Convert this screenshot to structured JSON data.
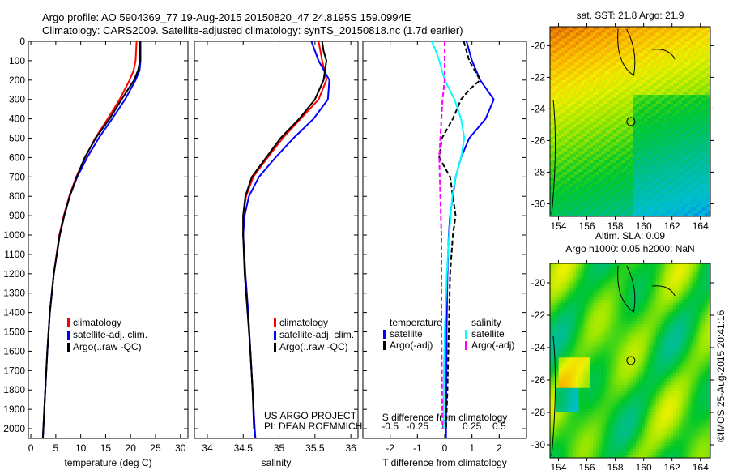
{
  "title_line1": "Argo profile: AO 5904369_77 19-Aug-2015 20150820_47 24.8195S 159.0994E",
  "title_line2": "Climatology: CARS2009. Satellite-adjusted climatology: synTS_20150818.nc (1.7d earlier)",
  "credit": "©IMOS 25-Aug-2015 20:41:16",
  "chart_data": [
    {
      "type": "line",
      "id": "temp",
      "xlabel": "temperature (deg C)",
      "xlim": [
        -0.5,
        31.5
      ],
      "xticks": [
        0,
        5,
        10,
        15,
        20,
        25,
        30
      ],
      "ylim": [
        0,
        2050
      ],
      "yticks": [
        0,
        100,
        200,
        300,
        400,
        500,
        600,
        700,
        800,
        900,
        1000,
        1100,
        1200,
        1300,
        1400,
        1500,
        1600,
        1700,
        1800,
        1900,
        2000
      ],
      "legend": [
        "climatology",
        "satellite-adj. clim.",
        "Argo(..raw -QC)"
      ],
      "series": [
        {
          "name": "climatology",
          "color": "#ff0000",
          "depth": [
            0,
            100,
            150,
            200,
            300,
            400,
            500,
            600,
            700,
            800,
            900,
            1000,
            1200,
            1400,
            1600,
            1800,
            2000,
            2050
          ],
          "values": [
            21.2,
            21.0,
            20.6,
            19.8,
            17.8,
            15.4,
            12.9,
            10.9,
            9.1,
            7.7,
            6.6,
            5.7,
            4.6,
            3.8,
            3.3,
            2.9,
            2.5,
            2.4
          ]
        },
        {
          "name": "satellite-adj. clim.",
          "color": "#0000ff",
          "depth": [
            0,
            100,
            150,
            200,
            300,
            400,
            500,
            600,
            700,
            800,
            900,
            1000,
            1200,
            1400,
            1600,
            1800,
            2000,
            2050
          ],
          "values": [
            22.0,
            22.0,
            21.8,
            21.0,
            18.9,
            16.3,
            13.6,
            11.3,
            9.3,
            7.8,
            6.7,
            5.8,
            4.6,
            3.8,
            3.3,
            2.9,
            2.5,
            2.4
          ]
        },
        {
          "name": "Argo(..raw -QC)",
          "color": "#000000",
          "depth": [
            0,
            100,
            150,
            200,
            300,
            400,
            500,
            600,
            700,
            800,
            900,
            1000,
            1200,
            1400,
            1600,
            1800,
            2000,
            2050
          ],
          "values": [
            21.9,
            21.9,
            21.5,
            20.7,
            18.2,
            15.8,
            13.0,
            10.8,
            9.2,
            7.8,
            6.7,
            5.8,
            4.6,
            3.8,
            3.3,
            2.9,
            2.5,
            2.4
          ]
        }
      ]
    },
    {
      "type": "line",
      "id": "sal",
      "xlabel": "salinity",
      "xlim": [
        33.82,
        36.1
      ],
      "xticks": [
        34,
        34.5,
        35,
        35.5,
        36
      ],
      "ylim": [
        0,
        2050
      ],
      "legend": [
        "climatology",
        "satellite-adj. clim.",
        "Argo(..raw -QC)"
      ],
      "annotation": [
        "US ARGO PROJECT",
        "PI: DEAN ROEMMICH"
      ],
      "series": [
        {
          "name": "climatology",
          "color": "#ff0000",
          "depth": [
            0,
            100,
            200,
            300,
            400,
            500,
            600,
            700,
            800,
            900,
            1000,
            1200,
            1400,
            1600,
            1800,
            2000,
            2050
          ],
          "values": [
            35.55,
            35.6,
            35.66,
            35.55,
            35.3,
            35.05,
            34.84,
            34.64,
            34.54,
            34.5,
            34.5,
            34.53,
            34.57,
            34.6,
            34.63,
            34.66,
            34.67
          ]
        },
        {
          "name": "satellite-adj. clim.",
          "color": "#0000ff",
          "depth": [
            0,
            100,
            200,
            300,
            400,
            500,
            600,
            700,
            800,
            900,
            1000,
            1200,
            1400,
            1600,
            1800,
            2000,
            2050
          ],
          "values": [
            35.45,
            35.55,
            35.7,
            35.68,
            35.48,
            35.2,
            34.95,
            34.72,
            34.58,
            34.52,
            34.5,
            34.53,
            34.57,
            34.6,
            34.63,
            34.66,
            34.67
          ]
        },
        {
          "name": "Argo(..raw -QC)",
          "color": "#000000",
          "depth": [
            0,
            50,
            100,
            150,
            200,
            300,
            400,
            500,
            600,
            700,
            800,
            900,
            1000,
            1200,
            1400,
            1600,
            1800,
            2000
          ],
          "values": [
            35.6,
            35.62,
            35.66,
            35.64,
            35.62,
            35.5,
            35.28,
            35.02,
            34.82,
            34.62,
            34.53,
            34.5,
            34.5,
            34.52,
            34.56,
            34.6,
            34.63,
            34.65
          ]
        }
      ]
    },
    {
      "type": "line",
      "id": "diff",
      "xlabel": "T difference from climatology",
      "xlabel2": "S difference from climatology",
      "xlim": [
        -3,
        3
      ],
      "xticks": [
        -2,
        -1,
        0,
        1,
        2
      ],
      "x2ticks": [
        -0.5,
        -0.25,
        0,
        0.25,
        0.5
      ],
      "x2tick_labels": [
        "-0.5",
        "-0.25",
        "0",
        "0.25",
        "0.5"
      ],
      "ylim": [
        0,
        2050
      ],
      "legend": {
        "temperature": "temperature",
        "salinity": "salinity",
        "items": [
          "satellite",
          "Argo(-adj)",
          "satellite",
          "Argo(-adj)"
        ]
      },
      "series": [
        {
          "name": "T satellite",
          "color": "#0000ff",
          "scale": "T",
          "depth": [
            0,
            50,
            100,
            200,
            300,
            400,
            500,
            600,
            700,
            800,
            900,
            1000,
            1200,
            1500,
            2000,
            2050
          ],
          "values": [
            0.8,
            0.9,
            1.0,
            1.3,
            1.8,
            1.5,
            0.9,
            0.6,
            0.4,
            0.3,
            0.2,
            0.15,
            0.1,
            0.07,
            0.05,
            0.05
          ]
        },
        {
          "name": "T Argo(-adj)",
          "color": "#000000",
          "scale": "T",
          "dash": true,
          "depth": [
            0,
            50,
            100,
            150,
            200,
            250,
            300,
            400,
            500,
            600,
            700,
            800,
            900,
            1000,
            1200,
            1500,
            1800,
            2000
          ],
          "values": [
            0.7,
            0.8,
            0.9,
            1.1,
            1.3,
            0.9,
            0.6,
            0.3,
            -0.1,
            -0.2,
            0.2,
            0.3,
            0.4,
            0.3,
            0.2,
            0.15,
            0.1,
            0.05
          ]
        },
        {
          "name": "S satellite",
          "color": "#00ffff",
          "scale": "S",
          "depth": [
            0,
            50,
            100,
            200,
            300,
            400,
            500,
            600,
            700,
            800,
            1000,
            1200,
            1500,
            1800,
            2000
          ],
          "values": [
            -0.12,
            -0.08,
            -0.05,
            0.0,
            0.09,
            0.15,
            0.18,
            0.15,
            0.1,
            0.07,
            0.04,
            0.02,
            0.0,
            -0.01,
            -0.01
          ]
        },
        {
          "name": "S Argo(-adj)",
          "color": "#ff00ff",
          "scale": "S",
          "dash": true,
          "depth": [
            0,
            100,
            200,
            300,
            400,
            500,
            600,
            800,
            1000,
            1500,
            2000
          ],
          "values": [
            0.0,
            0.0,
            0.0,
            -0.02,
            -0.03,
            -0.04,
            -0.05,
            -0.04,
            -0.03,
            -0.03,
            -0.02
          ]
        }
      ]
    },
    {
      "type": "heatmap",
      "id": "sst",
      "title": "sat. SST: 21.8 Argo: 21.9",
      "xlim": [
        153.4,
        164.7
      ],
      "ylim": [
        -30.8,
        -18.8
      ],
      "xticks": [
        154,
        156,
        158,
        160,
        162,
        164
      ],
      "yticks": [
        -20,
        -22,
        -24,
        -26,
        -28,
        -30
      ],
      "marker": [
        159.1,
        -24.8
      ]
    },
    {
      "type": "heatmap",
      "id": "sla",
      "title": "Altim. SLA: 0.09",
      "title2": "Argo h1000: 0.05 h2000: NaN",
      "xlim": [
        153.4,
        164.7
      ],
      "ylim": [
        -30.8,
        -18.8
      ],
      "xticks": [
        154,
        156,
        158,
        160,
        162,
        164
      ],
      "yticks": [
        -20,
        -22,
        -24,
        -26,
        -28,
        -30
      ],
      "marker": [
        159.1,
        -24.8
      ]
    }
  ]
}
